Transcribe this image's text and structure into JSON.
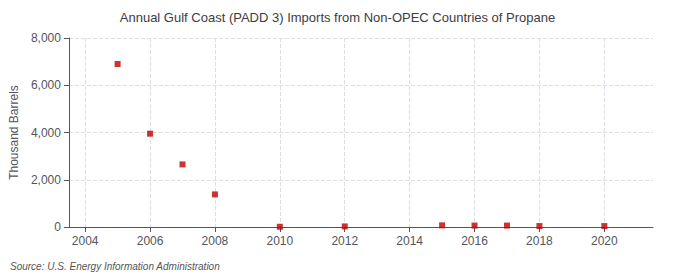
{
  "chart_data": {
    "type": "scatter",
    "title": "Annual Gulf Coast (PADD 3) Imports from Non-OPEC Countries of Propane",
    "ylabel": "Thousand Barrels",
    "annotation": "Source: U.S. Energy Information Administration",
    "x": [
      2005,
      2006,
      2007,
      2008,
      2010,
      2012,
      2015,
      2016,
      2017,
      2018,
      2020
    ],
    "values": [
      6900,
      3950,
      2650,
      1380,
      10,
      25,
      70,
      60,
      60,
      40,
      40
    ],
    "color": "#c00000",
    "marker": "square",
    "xlim": [
      2003.5,
      2021.5
    ],
    "xticks": [
      2004,
      2006,
      2008,
      2010,
      2012,
      2014,
      2016,
      2018,
      2020
    ],
    "ylim": [
      0,
      8000
    ],
    "yticks": [
      0,
      {
        "value": 2000,
        "label": "2,000"
      },
      {
        "value": 4000,
        "label": "4,000"
      },
      {
        "value": 6000,
        "label": "6,000"
      },
      {
        "value": 8000,
        "label": "8,000"
      }
    ],
    "grid": true
  }
}
